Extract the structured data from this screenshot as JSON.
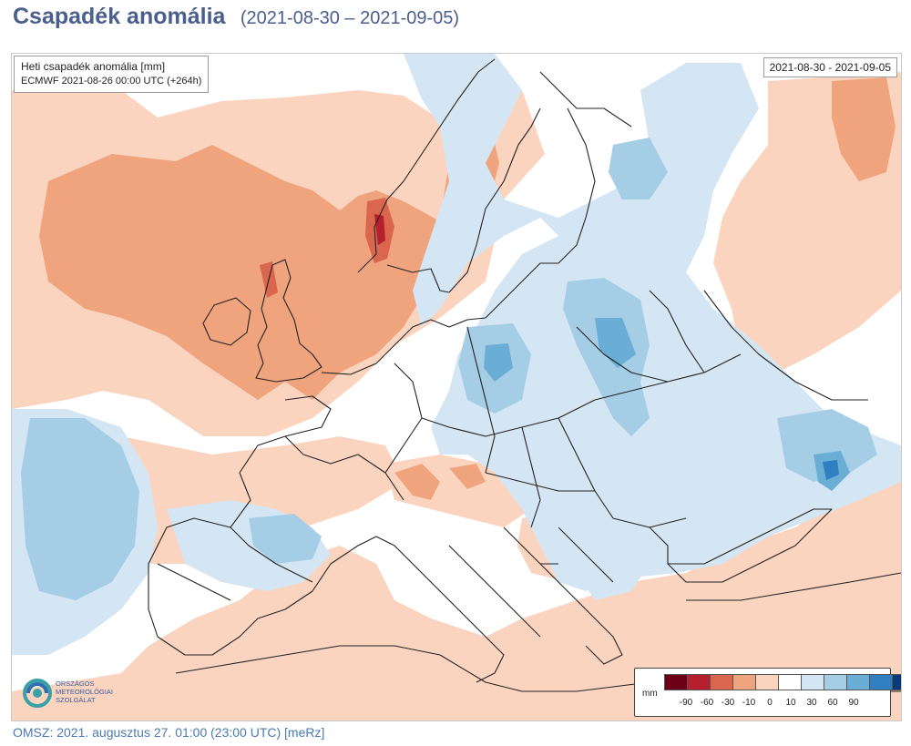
{
  "header": {
    "title": "Csapadék anomália",
    "date_range": "(2021-08-30 – 2021-09-05)"
  },
  "map": {
    "info_line1": "Heti csapadék anomália [mm]",
    "info_line2": "ECMWF 2021-08-26 00:00 UTC (+264h)",
    "period": "2021-08-30 - 2021-09-05"
  },
  "legend": {
    "unit": "mm",
    "colors": [
      "#6b0018",
      "#b51f2e",
      "#d9664d",
      "#f0a47e",
      "#fbd4c0",
      "#ffffff",
      "#d4e6f3",
      "#a6cde6",
      "#6aaed5",
      "#2f7fc1",
      "#0a3a78"
    ],
    "ticks": [
      "-90",
      "-60",
      "-30",
      "-10",
      "0",
      "10",
      "30",
      "60",
      "90"
    ]
  },
  "logo": {
    "line1": "ORSZÁGOS",
    "line2": "METEOROLÓGIAI",
    "line3": "SZOLGÁLAT"
  },
  "footer": {
    "text": "OMSZ: 2021. augusztus 27. 01:00 (23:00  UTC)  [meRz]"
  }
}
